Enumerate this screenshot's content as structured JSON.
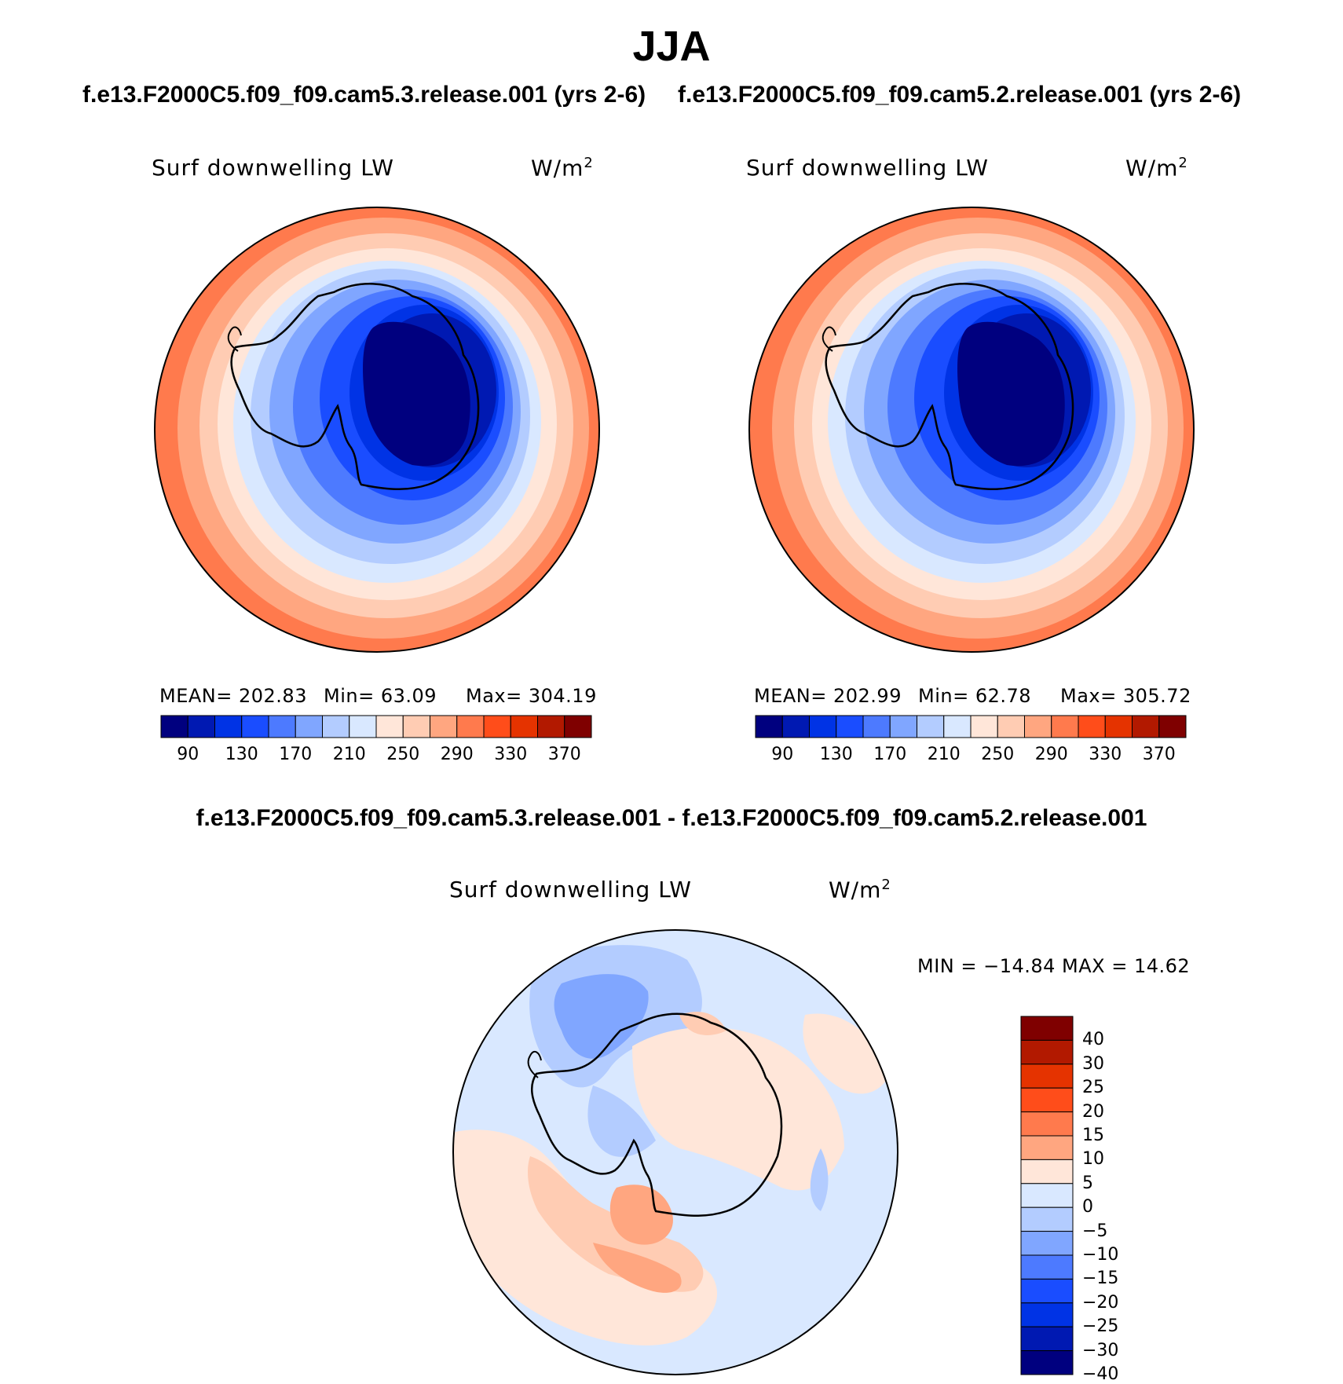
{
  "title": "JJA",
  "top_header": {
    "case1": "f.e13.F2000C5.f09_f09.cam5.3.release.001 (yrs 2-6)",
    "case2": "f.e13.F2000C5.f09_f09.cam5.2.release.001 (yrs 2-6)"
  },
  "diff_header": "f.e13.F2000C5.f09_f09.cam5.3.release.001 - f.e13.F2000C5.f09_f09.cam5.2.release.001",
  "variable": "Surf downwelling LW",
  "units": "W/m",
  "units_superscript": "2",
  "panels": [
    {
      "stats": {
        "mean": "MEAN= 202.83",
        "min": "Min=   63.09",
        "max": "Max= 304.19"
      }
    },
    {
      "stats": {
        "mean": "MEAN= 202.99",
        "min": "Min=   62.78",
        "max": "Max= 305.72"
      }
    }
  ],
  "diff_panel": {
    "minmax": "MIN = −14.84 MAX =   14.62"
  },
  "abs_colorbar": {
    "colors": [
      "#00007f",
      "#0019b2",
      "#0033e5",
      "#1a4dff",
      "#4d7aff",
      "#80a6ff",
      "#b3ccff",
      "#d9e8ff",
      "#ffe6d9",
      "#ffccb3",
      "#ffa680",
      "#ff7a4d",
      "#ff4d1a",
      "#e53300",
      "#b21900",
      "#7f0000"
    ],
    "tick_labels": [
      "90",
      "130",
      "170",
      "210",
      "250",
      "290",
      "330",
      "370"
    ]
  },
  "diff_colorbar": {
    "colors_top_to_bottom": [
      "#7f0000",
      "#b21900",
      "#e53300",
      "#ff4d1a",
      "#ff7a4d",
      "#ffa680",
      "#ffe6d9",
      "#d9e8ff",
      "#b3ccff",
      "#80a6ff",
      "#4d7aff",
      "#1a4dff",
      "#0033e5",
      "#0019b2",
      "#00007f"
    ],
    "tick_labels_top_to_bottom": [
      "40",
      "30",
      "25",
      "20",
      "15",
      "10",
      "5",
      "0",
      "−5",
      "−10",
      "−15",
      "−20",
      "−25",
      "−30",
      "−40"
    ]
  },
  "colors": {
    "coastline": "#000000",
    "ring_outer": "#ff7a4d",
    "antarctic_core": "#00007f"
  }
}
